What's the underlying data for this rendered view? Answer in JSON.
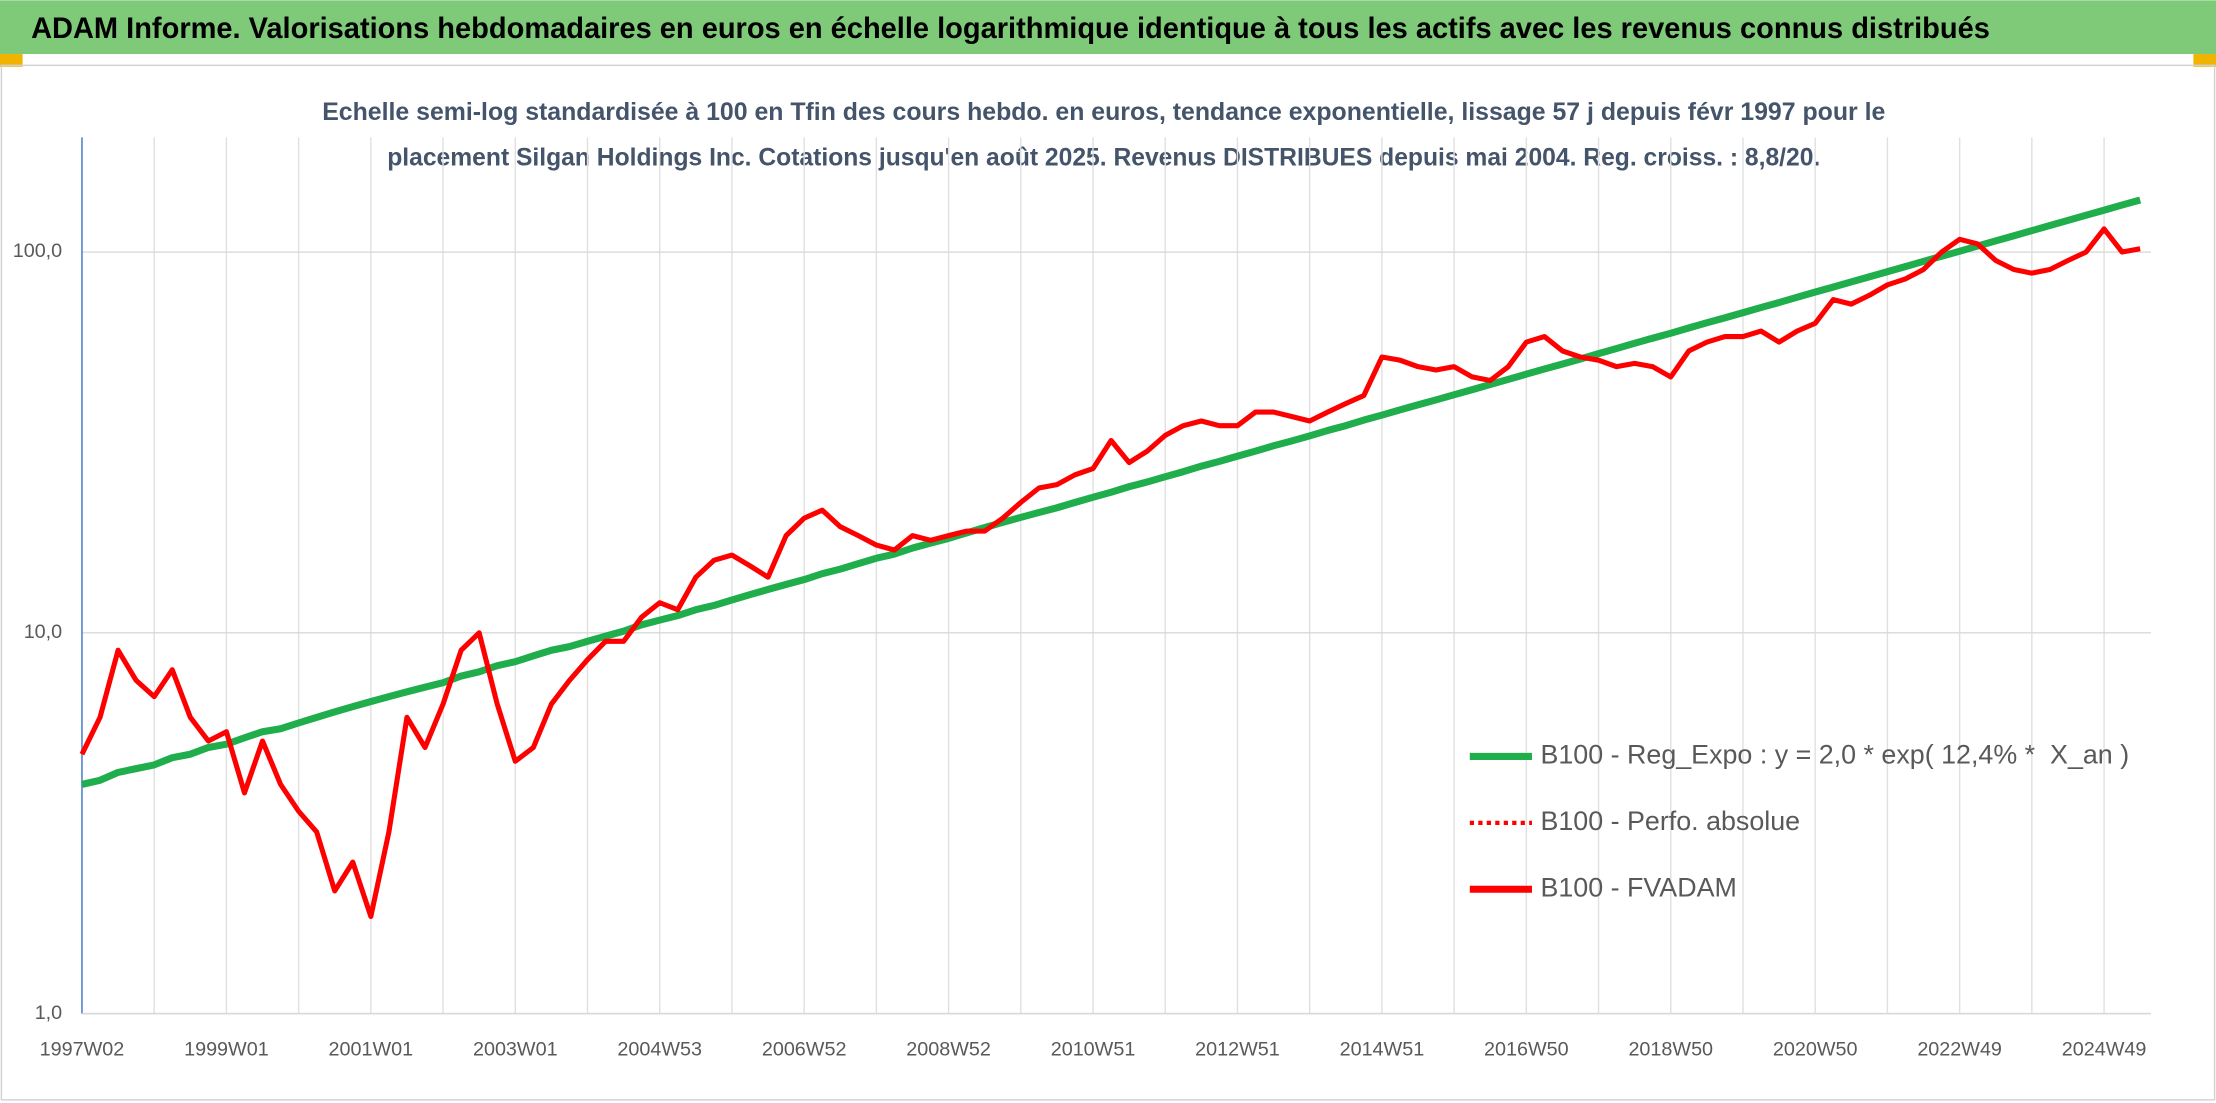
{
  "chart_data": {
    "type": "line",
    "title": "ADAM Informe. Valorisations hebdomadaires en euros en échelle logarithmique identique à tous les actifs avec les revenus connus distribués",
    "subtitle": [
      "Echelle semi-log standardisée à 100 en Tfin des cours hebdo. en euros, tendance exponentielle, lissage 57 j depuis févr 1997 pour le",
      "placement Silgan Holdings Inc. Cotations jusqu'en août 2025. Revenus DISTRIBUES depuis mai 2004. Reg. croiss. : 8,8/20."
    ],
    "log_scale": true,
    "grid": true,
    "legend": "right",
    "ylim": [
      1,
      200
    ],
    "yticks": [
      {
        "value": 1,
        "label": "1,0"
      },
      {
        "value": 10,
        "label": "10,0"
      },
      {
        "value": 100,
        "label": "100,0"
      }
    ],
    "categories": [
      "1997W02",
      null,
      null,
      null,
      null,
      null,
      null,
      null,
      "1999W01",
      null,
      null,
      null,
      null,
      null,
      null,
      null,
      "2001W01",
      null,
      null,
      null,
      null,
      null,
      null,
      null,
      "2003W01",
      null,
      null,
      null,
      null,
      null,
      null,
      null,
      "2004W53",
      null,
      null,
      null,
      null,
      null,
      null,
      null,
      "2006W52",
      null,
      null,
      null,
      null,
      null,
      null,
      null,
      "2008W52",
      null,
      null,
      null,
      null,
      null,
      null,
      null,
      "2010W51",
      null,
      null,
      null,
      null,
      null,
      null,
      null,
      "2012W51",
      null,
      null,
      null,
      null,
      null,
      null,
      null,
      "2014W51",
      null,
      null,
      null,
      null,
      null,
      null,
      null,
      "2016W50",
      null,
      null,
      null,
      null,
      null,
      null,
      null,
      "2018W50",
      null,
      null,
      null,
      null,
      null,
      null,
      null,
      "2020W50",
      null,
      null,
      null,
      null,
      null,
      null,
      null,
      "2022W49",
      null,
      null,
      null,
      null,
      null,
      null,
      null,
      "2024W49",
      null,
      null
    ],
    "series": [
      {
        "name": "B100 - Reg_Expo : y = 2,0 * exp( 12,4% *  X_an )",
        "color": "#1fae4b",
        "dash": "solid",
        "values": [
          4.0,
          4.1,
          4.3,
          4.4,
          4.5,
          4.7,
          4.8,
          5.0,
          5.1,
          5.3,
          5.5,
          5.6,
          5.8,
          6.0,
          6.2,
          6.4,
          6.6,
          6.8,
          7.0,
          7.2,
          7.4,
          7.7,
          7.9,
          8.2,
          8.4,
          8.7,
          9.0,
          9.2,
          9.5,
          9.8,
          10.1,
          10.5,
          10.8,
          11.1,
          11.5,
          11.8,
          12.2,
          12.6,
          13.0,
          13.4,
          13.8,
          14.3,
          14.7,
          15.2,
          15.7,
          16.1,
          16.7,
          17.2,
          17.7,
          18.3,
          18.9,
          19.5,
          20.1,
          20.7,
          21.3,
          22.0,
          22.7,
          23.4,
          24.2,
          24.9,
          25.7,
          26.5,
          27.4,
          28.2,
          29.1,
          30.0,
          31.0,
          31.9,
          32.9,
          34.0,
          35.0,
          36.2,
          37.3,
          38.5,
          39.7,
          40.9,
          42.2,
          43.5,
          44.9,
          46.3,
          47.8,
          49.3,
          50.8,
          52.4,
          54.1,
          55.8,
          57.6,
          59.4,
          61.2,
          63.2,
          65.2,
          67.2,
          69.3,
          71.5,
          73.7,
          76.1,
          78.5,
          80.9,
          83.5,
          86.1,
          88.8,
          91.6,
          94.5,
          97.5,
          100.5,
          103.7,
          107.0,
          110.3,
          113.8,
          117.4,
          121.1,
          124.9,
          128.8,
          132.9,
          137.0
        ]
      },
      {
        "name": "B100 - Perfo. absolue",
        "color": "#ff0000",
        "dash": "dotted"
      },
      {
        "name": "B100 - FVADAM",
        "color": "#ff0000",
        "dash": "solid",
        "values": [
          4.8,
          6.0,
          9.0,
          7.5,
          6.8,
          8.0,
          6.0,
          5.2,
          5.5,
          3.8,
          5.2,
          4.0,
          3.4,
          3.0,
          2.1,
          2.5,
          1.8,
          3.0,
          6.0,
          5.0,
          6.5,
          9.0,
          10.0,
          6.5,
          4.6,
          5.0,
          6.5,
          7.5,
          8.5,
          9.5,
          9.5,
          11.0,
          12.0,
          11.5,
          14.0,
          15.5,
          16.0,
          15.0,
          14.0,
          18.0,
          20.0,
          21.0,
          19.0,
          18.0,
          17.0,
          16.5,
          18.0,
          17.5,
          18.0,
          18.5,
          18.5,
          20.0,
          22.0,
          24.0,
          24.5,
          26.0,
          27.0,
          32.0,
          28.0,
          30.0,
          33.0,
          35.0,
          36.0,
          35.0,
          35.0,
          38.0,
          38.0,
          37.0,
          36.0,
          38.0,
          40.0,
          42.0,
          53.0,
          52.0,
          50.0,
          49.0,
          50.0,
          47.0,
          46.0,
          50.0,
          58.0,
          60.0,
          55.0,
          53.0,
          52.0,
          50.0,
          51.0,
          50.0,
          47.0,
          55.0,
          58.0,
          60.0,
          60.0,
          62.0,
          58.0,
          62.0,
          65.0,
          75.0,
          73.0,
          77.0,
          82.0,
          85.0,
          90.0,
          100.0,
          108.0,
          105.0,
          95.0,
          90.0,
          88.0,
          90.0,
          95.0,
          100.0,
          115.0,
          100.0,
          102.0
        ]
      }
    ]
  }
}
